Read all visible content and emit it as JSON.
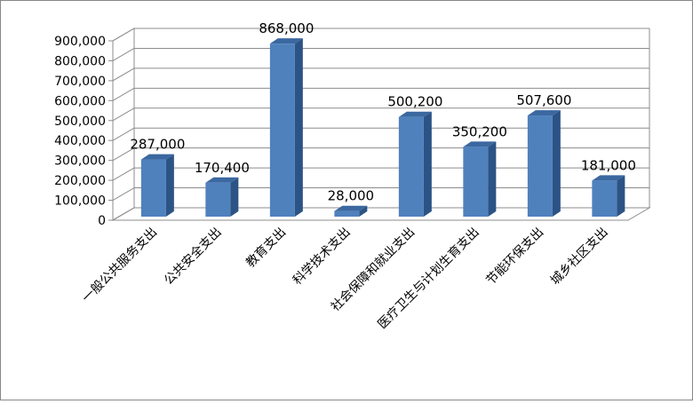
{
  "chart_data": {
    "type": "bar",
    "style": "3d-column",
    "categories": [
      "一般公共服务支出",
      "公共安全支出",
      "教育支出",
      "科学技术支出",
      "社会保障和就业支出",
      "医疗卫生与计划生育支出",
      "节能环保支出",
      "城乡社区支出"
    ],
    "values": [
      287000,
      170400,
      868000,
      28000,
      500200,
      350200,
      507600,
      181000
    ],
    "data_labels": [
      "287,000",
      "170,400",
      "868,000",
      "28,000",
      "500,200",
      "350,200",
      "507,600",
      "181,000"
    ],
    "yticks": [
      "0",
      "100,000",
      "200,000",
      "300,000",
      "400,000",
      "500,000",
      "600,000",
      "700,000",
      "800,000",
      "900,000"
    ],
    "ylim": [
      0,
      900000
    ],
    "grid": true,
    "legend": "none",
    "colors": {
      "bar_front": "#4f81bd",
      "bar_side": "#2c5385",
      "bar_top": "#3b68a0",
      "grid": "#8c8c8c"
    }
  }
}
